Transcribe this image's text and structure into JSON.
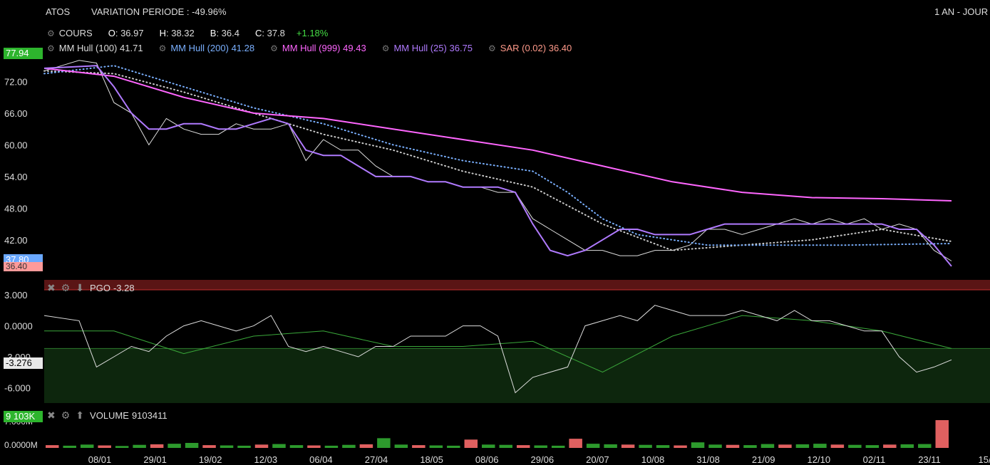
{
  "header": {
    "symbol": "ATOS",
    "variation": "VARIATION PERIODE : -49.96%",
    "period": "1 AN - JOUR"
  },
  "ohlc": {
    "label": "COURS",
    "o_label": "O",
    "o": ": 36.97",
    "h_label": "H",
    "h": ": 38.32",
    "b_label": "B",
    "b": ": 36.4",
    "c_label": "C",
    "c": ": 37.8",
    "change": "+1.18%"
  },
  "legend": [
    {
      "label": "MM Hull (100)",
      "value": "41.71",
      "color": "#dddddd"
    },
    {
      "label": "MM Hull (200)",
      "value": "41.28",
      "color": "#7ab0ff"
    },
    {
      "label": "MM Hull (999)",
      "value": "49.43",
      "color": "#ff66ff"
    },
    {
      "label": "MM Hull (25)",
      "value": "36.75",
      "color": "#b07aff"
    },
    {
      "label": "SAR (0.02)",
      "value": "36.40",
      "color": "#ff9a8a"
    }
  ],
  "price_axis": {
    "ticks": [
      "72.00",
      "66.00",
      "60.00",
      "54.00",
      "48.00",
      "42.00"
    ],
    "tick_values": [
      72,
      66,
      60,
      54,
      48,
      42
    ],
    "top_tag": "77.94",
    "last_tag": "37.80",
    "sar_tag": "36.40"
  },
  "pgo": {
    "title": "PGO",
    "value": "-3.28",
    "ticks": [
      "3.000",
      "0.0000",
      "-3.000",
      "-6.000"
    ],
    "tick_values": [
      3,
      0,
      -3,
      -6
    ],
    "last_tag": "-3.276"
  },
  "volume": {
    "title": "VOLUME",
    "value": "9103411",
    "ticks": [
      "7.000M",
      "0.0000M"
    ],
    "tick_values": [
      7,
      0
    ],
    "last_tag": "9 103K"
  },
  "date_ticks": [
    "08/01",
    "29/01",
    "19/02",
    "12/03",
    "06/04",
    "27/04",
    "18/05",
    "08/06",
    "29/06",
    "20/07",
    "10/08",
    "31/08",
    "21/09",
    "12/10",
    "02/11",
    "23/11",
    "15/"
  ],
  "chart_data": {
    "type": "line",
    "ylim": [
      35.5,
      78
    ],
    "series": [
      {
        "name": "COURS",
        "color": "#dddddd",
        "x": [
          0,
          5,
          10,
          15,
          20,
          25,
          30,
          35,
          40,
          45,
          50,
          55,
          60,
          65,
          70,
          75,
          80,
          85,
          90,
          95,
          100,
          105,
          110,
          115,
          120,
          125,
          130,
          135,
          140,
          145,
          150,
          155,
          160,
          165,
          170,
          175,
          180,
          185,
          190,
          195,
          200,
          205,
          210,
          215,
          220,
          225,
          230,
          235,
          240,
          245,
          250,
          255,
          260
        ],
        "y": [
          74,
          75,
          76,
          75.5,
          68,
          66,
          60,
          65,
          63,
          62,
          62,
          64,
          63,
          63,
          64,
          57,
          61,
          59,
          59,
          56,
          54,
          54,
          53,
          53,
          52,
          52,
          51,
          51,
          46,
          44,
          42,
          40,
          40,
          39,
          39,
          40,
          40,
          41,
          44,
          44,
          43,
          44,
          45,
          46,
          45,
          46,
          45,
          46,
          44,
          45,
          44,
          40,
          38
        ]
      },
      {
        "name": "MM Hull (100)",
        "color": "#cccccc",
        "x": [
          0,
          20,
          40,
          60,
          80,
          100,
          120,
          140,
          160,
          180,
          200,
          220,
          240,
          260
        ],
        "y": [
          74,
          73.5,
          70,
          66,
          62,
          59,
          55,
          52,
          45,
          40,
          41,
          42,
          44,
          41.7
        ]
      },
      {
        "name": "MM Hull (200)",
        "color": "#7ab0ff",
        "x": [
          0,
          20,
          40,
          60,
          80,
          100,
          120,
          140,
          150,
          160,
          170,
          190,
          210,
          230,
          260
        ],
        "y": [
          73.5,
          75,
          71,
          67,
          64,
          60,
          57,
          55,
          51,
          46,
          43,
          41,
          41,
          41,
          41.3
        ]
      },
      {
        "name": "MM Hull (999)",
        "color": "#ff66ff",
        "x": [
          0,
          20,
          40,
          60,
          80,
          100,
          120,
          140,
          160,
          180,
          200,
          220,
          240,
          260
        ],
        "y": [
          74.5,
          73,
          69,
          66,
          65,
          63,
          61,
          59,
          56,
          53,
          51,
          50,
          49.8,
          49.4
        ]
      },
      {
        "name": "MM Hull (25)",
        "color": "#b07aff",
        "x": [
          0,
          15,
          20,
          25,
          30,
          35,
          40,
          45,
          50,
          55,
          60,
          65,
          70,
          75,
          80,
          85,
          90,
          95,
          100,
          105,
          110,
          115,
          120,
          125,
          130,
          135,
          140,
          145,
          150,
          155,
          160,
          165,
          170,
          175,
          180,
          185,
          190,
          195,
          200,
          205,
          210,
          215,
          220,
          225,
          230,
          235,
          240,
          245,
          250,
          255,
          260
        ],
        "y": [
          74.5,
          75,
          71,
          66,
          63,
          63,
          64,
          64,
          63,
          63,
          64,
          65,
          64,
          59,
          58,
          58,
          56,
          54,
          54,
          54,
          53,
          53,
          52,
          52,
          52,
          51,
          45,
          40,
          39,
          40,
          42,
          44,
          44,
          43,
          43,
          43,
          44,
          45,
          45,
          45,
          45,
          45,
          45,
          45,
          45,
          45,
          45,
          44,
          44,
          41,
          37
        ]
      }
    ],
    "pgo_series": {
      "x": [
        0,
        10,
        15,
        20,
        25,
        30,
        35,
        40,
        45,
        50,
        55,
        60,
        65,
        70,
        75,
        80,
        85,
        90,
        95,
        100,
        105,
        110,
        115,
        120,
        125,
        130,
        135,
        140,
        145,
        150,
        155,
        160,
        165,
        170,
        175,
        180,
        185,
        190,
        195,
        200,
        205,
        210,
        215,
        220,
        225,
        230,
        235,
        240,
        245,
        250,
        255,
        260
      ],
      "y": [
        1,
        0.5,
        -4,
        -3,
        -2,
        -2.5,
        -1,
        0,
        0.5,
        0,
        -0.5,
        0,
        1,
        -2,
        -2.5,
        -2,
        -2.5,
        -3,
        -2,
        -2,
        -1,
        -1,
        -1,
        0,
        0,
        -1,
        -6.5,
        -5,
        -4.5,
        -4,
        0,
        0.5,
        1,
        0.5,
        2,
        1.5,
        1,
        1,
        1,
        1.5,
        1,
        0.5,
        1.5,
        0.5,
        0.5,
        0,
        -0.5,
        -0.5,
        -3,
        -4.5,
        -4,
        -3.3
      ]
    },
    "pgo_signal": {
      "x": [
        0,
        20,
        40,
        60,
        80,
        100,
        120,
        140,
        160,
        180,
        200,
        220,
        240,
        260
      ],
      "y": [
        -0.5,
        -0.5,
        -2.7,
        -1,
        -0.5,
        -2,
        -2,
        -1.5,
        -4.5,
        -1,
        1,
        0.5,
        -0.5,
        -2.2
      ]
    },
    "pgo_level": -2.2,
    "volume_pct_of_max": [
      10,
      8,
      12,
      9,
      7,
      11,
      13,
      15,
      18,
      10,
      9,
      8,
      12,
      14,
      10,
      9,
      8,
      11,
      13,
      35,
      12,
      10,
      9,
      8,
      30,
      12,
      11,
      10,
      9,
      8,
      33,
      15,
      13,
      12,
      11,
      10,
      9,
      20,
      12,
      11,
      10,
      14,
      12,
      13,
      15,
      12,
      11,
      10,
      12,
      13,
      14,
      100
    ]
  }
}
